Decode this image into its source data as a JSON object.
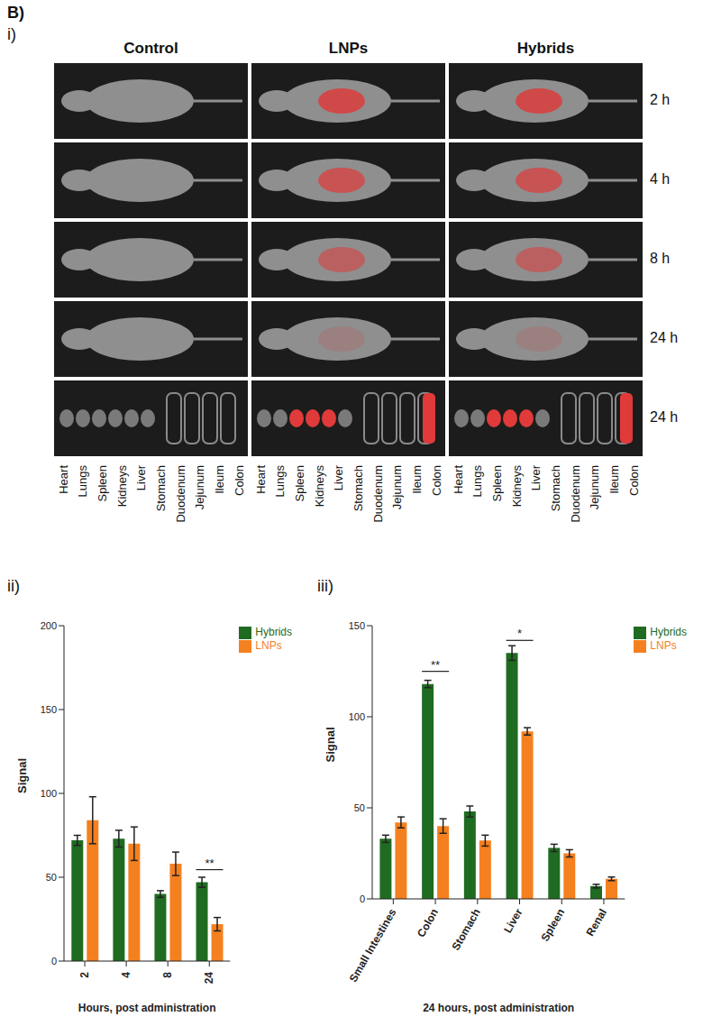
{
  "figure_label": "B)",
  "imaging": {
    "label": "i)",
    "columns": [
      "Control",
      "LNPs",
      "Hybrids"
    ],
    "timepoints": [
      "2 h",
      "4 h",
      "8 h",
      "24 h",
      "24 h"
    ],
    "organs": [
      "Heart",
      "Lungs",
      "Spleen",
      "Kidneys",
      "Liver",
      "Stomach",
      "Duodenum",
      "Jejunum",
      "Ileum",
      "Colon"
    ]
  },
  "chart_data": [
    {
      "panel": "ii)",
      "type": "bar",
      "x_label": "Hours, post administration",
      "y_label": "Signal",
      "categories": [
        "2",
        "4",
        "8",
        "24"
      ],
      "series": [
        {
          "name": "Hybrids",
          "color": "#1f6b21",
          "values": [
            72,
            73,
            40,
            47
          ],
          "errors": [
            3,
            5,
            2,
            3
          ]
        },
        {
          "name": "LNPs",
          "color": "#f5801f",
          "values": [
            84,
            70,
            58,
            22
          ],
          "errors": [
            14,
            10,
            7,
            4
          ]
        }
      ],
      "ylim": [
        0,
        200
      ],
      "yticks": [
        0,
        50,
        100,
        150,
        200
      ],
      "grid": false,
      "legend": "right",
      "annotations": [
        {
          "category": "24",
          "text": "**"
        }
      ]
    },
    {
      "panel": "iii)",
      "type": "bar",
      "x_label": "24 hours, post administration",
      "y_label": "Signal",
      "categories": [
        "Small Intestines",
        "Colon",
        "Stomach",
        "Liver",
        "Spleen",
        "Renal"
      ],
      "series": [
        {
          "name": "Hybrids",
          "color": "#1f6b21",
          "values": [
            33,
            118,
            48,
            135,
            28,
            7
          ],
          "errors": [
            2,
            2,
            3,
            4,
            2,
            1
          ]
        },
        {
          "name": "LNPs",
          "color": "#f5801f",
          "values": [
            42,
            40,
            32,
            92,
            25,
            11
          ],
          "errors": [
            3,
            4,
            3,
            2,
            2,
            1
          ]
        }
      ],
      "ylim": [
        0,
        150
      ],
      "yticks": [
        0,
        50,
        100,
        150
      ],
      "grid": false,
      "legend": "right",
      "annotations": [
        {
          "category": "Colon",
          "text": "**"
        },
        {
          "category": "Liver",
          "text": "*"
        }
      ]
    }
  ]
}
